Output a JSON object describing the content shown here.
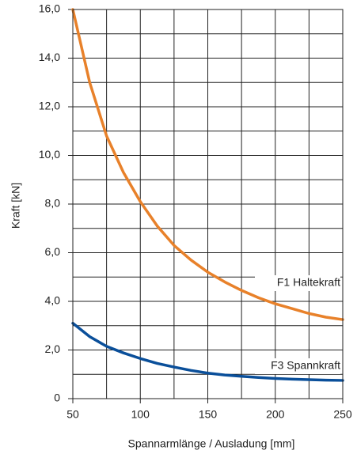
{
  "chart_data": {
    "type": "line",
    "x_label": "Spannarmlänge / Ausladung [mm]",
    "y_label": "Kraft [kN]",
    "x": [
      50,
      62.5,
      75,
      87.5,
      100,
      112.5,
      125,
      137.5,
      150,
      162.5,
      175,
      187.5,
      200,
      212.5,
      225,
      237.5,
      250
    ],
    "series": [
      {
        "name": "F1 Haltekraft",
        "color": "#e8812a",
        "values": [
          16.0,
          13.0,
          10.8,
          9.3,
          8.1,
          7.1,
          6.3,
          5.7,
          5.2,
          4.8,
          4.45,
          4.15,
          3.9,
          3.7,
          3.5,
          3.35,
          3.25
        ]
      },
      {
        "name": "F3 Spannkraft",
        "color": "#0a4f9a",
        "values": [
          3.1,
          2.55,
          2.15,
          1.88,
          1.65,
          1.45,
          1.3,
          1.16,
          1.05,
          0.97,
          0.92,
          0.87,
          0.83,
          0.8,
          0.78,
          0.76,
          0.75
        ]
      }
    ],
    "xlim": [
      50,
      250
    ],
    "xticks": [
      50,
      100,
      150,
      200,
      250
    ],
    "ylim": [
      0,
      16
    ],
    "yticks": [
      0,
      {
        "value": 2,
        "label": "2,0"
      },
      {
        "value": 4,
        "label": "4,0"
      },
      {
        "value": 6,
        "label": "6,0"
      },
      {
        "value": 8,
        "label": "8,0"
      },
      {
        "value": 10,
        "label": "10,0"
      },
      {
        "value": 12,
        "label": "12,0"
      },
      {
        "value": 14,
        "label": "14,0"
      },
      {
        "value": 16,
        "label": "16,0"
      }
    ],
    "xgrid": [
      50,
      75,
      100,
      125,
      150,
      175,
      200,
      225,
      250
    ],
    "ygrid": [
      0,
      1,
      2,
      3,
      4,
      5,
      6,
      7,
      8,
      9,
      10,
      11,
      12,
      13,
      14,
      15,
      16
    ],
    "grid": true
  }
}
